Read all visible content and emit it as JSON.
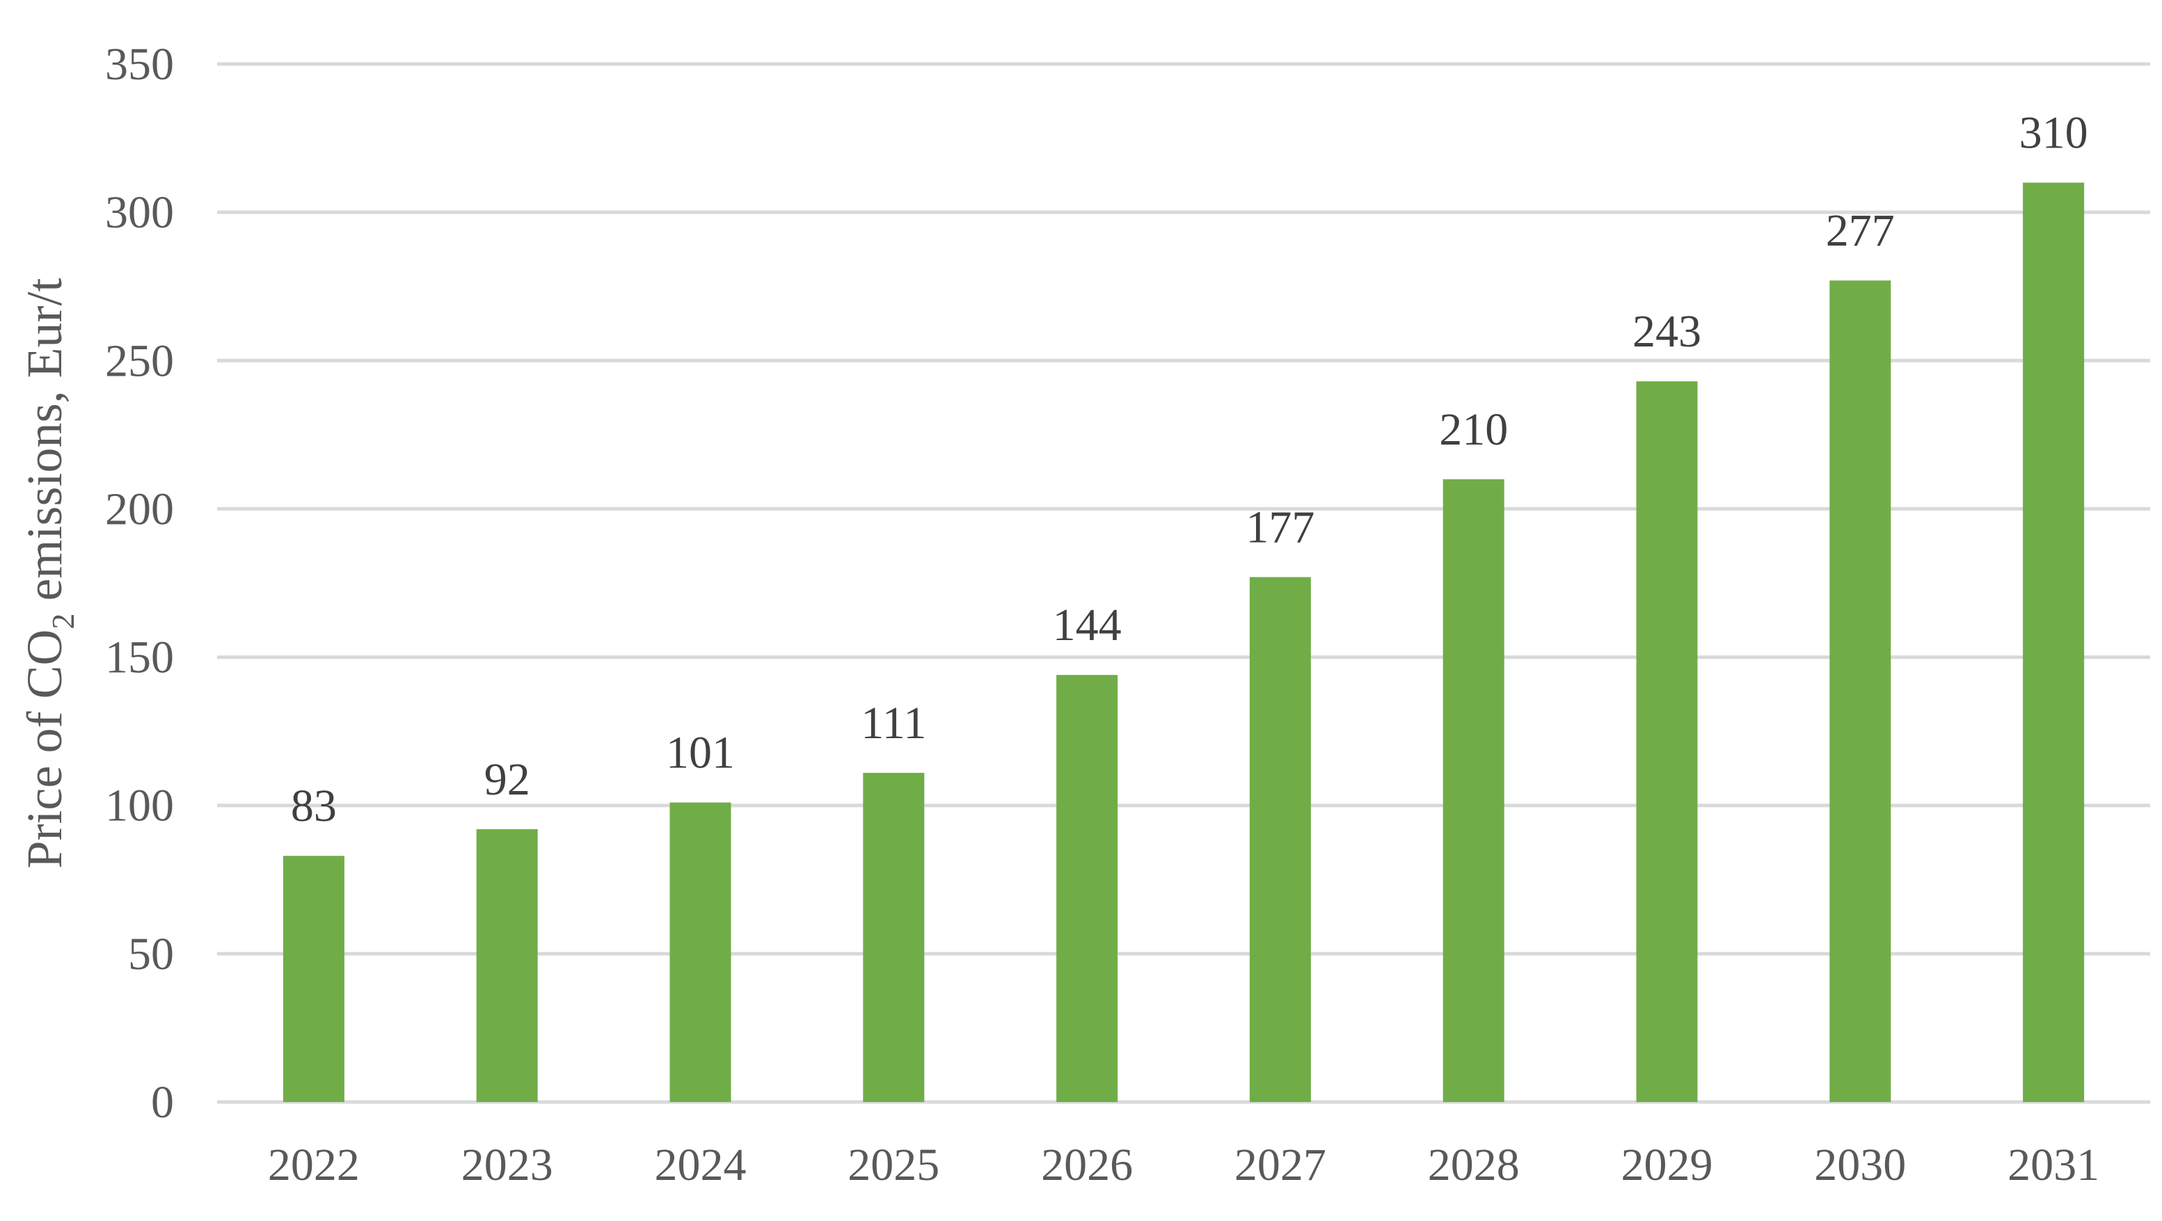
{
  "chart_data": {
    "type": "bar",
    "categories": [
      "2022",
      "2023",
      "2024",
      "2025",
      "2026",
      "2027",
      "2028",
      "2029",
      "2030",
      "2031"
    ],
    "values": [
      83,
      92,
      101,
      111,
      144,
      177,
      210,
      243,
      277,
      310
    ],
    "data_labels": [
      "83",
      "92",
      "101",
      "111",
      "144",
      "177",
      "210",
      "243",
      "277",
      "310"
    ],
    "title": "",
    "xlabel": "",
    "ylabel": {
      "prefix": "Price of CO",
      "subscript": "2",
      "suffix": " emissions, Eur/t"
    },
    "ylim": [
      0,
      350
    ],
    "yticks": [
      0,
      50,
      100,
      150,
      200,
      250,
      300,
      350
    ],
    "ytick_labels": [
      "0",
      "50",
      "100",
      "150",
      "200",
      "250",
      "300",
      "350"
    ],
    "grid": true,
    "legend": "none",
    "colors": {
      "bar": "#70AD47",
      "grid": "#D9D9D9",
      "tick_text": "#595959",
      "label_text": "#404040"
    }
  }
}
